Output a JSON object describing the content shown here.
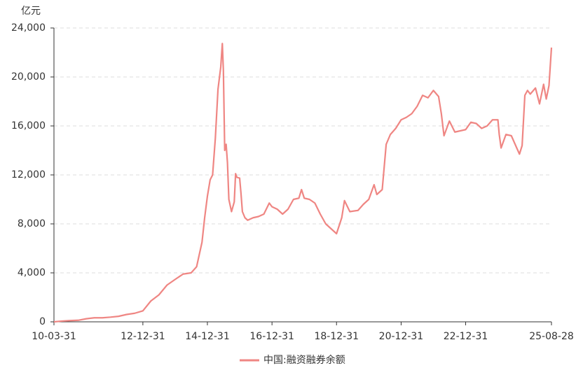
{
  "chart_data": {
    "type": "line",
    "y_unit": "亿元",
    "x": [
      "10-03-31",
      "10-06-30",
      "10-09-30",
      "10-12-31",
      "11-03-31",
      "11-06-30",
      "11-09-30",
      "11-12-31",
      "12-03-31",
      "12-06-30",
      "12-09-30",
      "12-12-31",
      "13-03-31",
      "13-06-30",
      "13-09-30",
      "13-12-31",
      "14-03-31",
      "14-06-30",
      "14-08-31",
      "14-10-31",
      "14-11-30",
      "14-12-31",
      "15-01-31",
      "15-02-28",
      "15-03-31",
      "15-04-30",
      "15-05-31",
      "15-06-18",
      "15-06-30",
      "15-07-15",
      "15-07-31",
      "15-08-15",
      "15-08-31",
      "15-09-30",
      "15-10-31",
      "15-11-15",
      "15-11-30",
      "15-12-31",
      "16-01-15",
      "16-01-31",
      "16-02-29",
      "16-03-31",
      "16-05-31",
      "16-07-31",
      "16-09-30",
      "16-11-30",
      "16-12-31",
      "17-02-28",
      "17-04-30",
      "17-06-30",
      "17-08-31",
      "17-10-31",
      "17-11-30",
      "17-12-31",
      "18-02-28",
      "18-04-30",
      "18-06-30",
      "18-08-31",
      "18-10-31",
      "18-12-31",
      "19-02-28",
      "19-03-31",
      "19-05-31",
      "19-08-31",
      "19-10-31",
      "19-12-31",
      "20-02-29",
      "20-03-31",
      "20-05-31",
      "20-07-15",
      "20-08-31",
      "20-10-31",
      "20-12-31",
      "21-02-28",
      "21-04-30",
      "21-06-30",
      "21-08-31",
      "21-10-31",
      "21-12-31",
      "22-02-28",
      "22-03-31",
      "22-04-30",
      "22-06-30",
      "22-08-31",
      "22-10-31",
      "22-12-31",
      "23-02-28",
      "23-04-30",
      "23-06-30",
      "23-08-31",
      "23-10-31",
      "23-12-31",
      "24-01-15",
      "24-02-05",
      "24-03-31",
      "24-05-31",
      "24-07-31",
      "24-08-31",
      "24-09-30",
      "24-10-31",
      "24-11-30",
      "24-12-31",
      "25-02-28",
      "25-04-15",
      "25-05-31",
      "25-06-30",
      "25-07-31",
      "25-08-28"
    ],
    "series": [
      {
        "name": "中国:融资融券余额",
        "color": "#ef8683",
        "values": [
          0,
          60,
          100,
          127,
          250,
          330,
          330,
          382,
          450,
          600,
          700,
          895,
          1700,
          2200,
          3000,
          3465,
          3900,
          4000,
          4500,
          6500,
          8500,
          10257,
          11600,
          12000,
          15000,
          19000,
          20800,
          22730,
          20500,
          14000,
          14500,
          13000,
          10000,
          9000,
          9800,
          12100,
          11800,
          11740,
          10500,
          9000,
          8500,
          8300,
          8500,
          8600,
          8800,
          9700,
          9400,
          9200,
          8800,
          9200,
          10000,
          10100,
          10800,
          10100,
          10000,
          9700,
          8800,
          8000,
          7600,
          7200,
          8500,
          9900,
          9000,
          9100,
          9600,
          10000,
          11200,
          10400,
          10800,
          14500,
          15300,
          15800,
          16500,
          16700,
          17000,
          17600,
          18500,
          18300,
          18900,
          18400,
          17000,
          15200,
          16400,
          15500,
          15600,
          15700,
          16300,
          16200,
          15800,
          16000,
          16500,
          16500,
          15300,
          14200,
          15300,
          15200,
          14200,
          13700,
          14400,
          18500,
          18900,
          18600,
          19100,
          17800,
          19400,
          18200,
          19300,
          22400
        ]
      }
    ],
    "xlim": [
      "10-03-31",
      "25-08-28"
    ],
    "xticks": [
      "10-03-31",
      "12-12-31",
      "14-12-31",
      "16-12-31",
      "18-12-31",
      "20-12-31",
      "22-12-31",
      "25-08-28"
    ],
    "ylim": [
      0,
      24000
    ],
    "yticks": [
      0,
      {
        "value": 4000,
        "label": "4,000"
      },
      {
        "value": 8000,
        "label": "8,000"
      },
      {
        "value": 12000,
        "label": "12,000"
      },
      {
        "value": 16000,
        "label": "16,000"
      },
      {
        "value": 20000,
        "label": "20,000"
      },
      {
        "value": 24000,
        "label": "24,000"
      }
    ],
    "grid": true
  }
}
